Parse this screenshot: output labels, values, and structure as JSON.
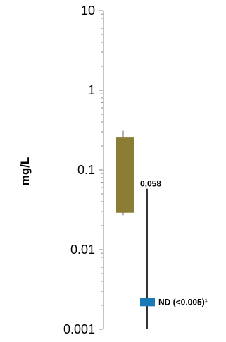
{
  "chart_data": {
    "type": "box",
    "ylabel": "mg/L",
    "yscale": "log",
    "ylim": [
      0.001,
      10
    ],
    "yticks": [
      {
        "value": 10,
        "label": "10"
      },
      {
        "value": 1,
        "label": "1"
      },
      {
        "value": 0.1,
        "label": "0.1"
      },
      {
        "value": 0.01,
        "label": "0.01"
      },
      {
        "value": 0.001,
        "label": "0.001"
      }
    ],
    "series": [
      {
        "kind": "range-box",
        "color": "#8B7D35",
        "whisker_high": 0.31,
        "box_high": 0.26,
        "box_low": 0.029,
        "whisker_low": 0.027
      },
      {
        "kind": "range-line",
        "color": "#1A7AB8",
        "high": 0.058,
        "low": 0.001,
        "marker": 0.0022,
        "high_label": "0,058",
        "marker_label": "ND (<0.005)¹"
      }
    ],
    "grid": false,
    "legend": "none"
  }
}
